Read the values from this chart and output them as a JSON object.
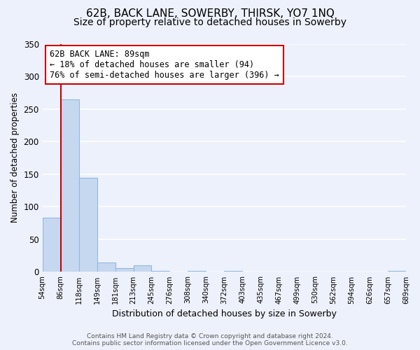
{
  "title": "62B, BACK LANE, SOWERBY, THIRSK, YO7 1NQ",
  "subtitle": "Size of property relative to detached houses in Sowerby",
  "xlabel": "Distribution of detached houses by size in Sowerby",
  "ylabel": "Number of detached properties",
  "bar_values": [
    83,
    265,
    144,
    14,
    6,
    10,
    1,
    0,
    1,
    0,
    1,
    0,
    0,
    0,
    0,
    0,
    0,
    0,
    0,
    1
  ],
  "bar_labels": [
    "54sqm",
    "86sqm",
    "118sqm",
    "149sqm",
    "181sqm",
    "213sqm",
    "245sqm",
    "276sqm",
    "308sqm",
    "340sqm",
    "372sqm",
    "403sqm",
    "435sqm",
    "467sqm",
    "499sqm",
    "530sqm",
    "562sqm",
    "594sqm",
    "626sqm",
    "657sqm",
    "689sqm"
  ],
  "bar_color": "#c6d8f0",
  "bar_edge_color": "#94b8dc",
  "annotation_text": "62B BACK LANE: 89sqm\n← 18% of detached houses are smaller (94)\n76% of semi-detached houses are larger (396) →",
  "annotation_box_color": "white",
  "annotation_box_edge_color": "#cc0000",
  "red_line_color": "#cc0000",
  "ylim": [
    0,
    350
  ],
  "yticks": [
    0,
    50,
    100,
    150,
    200,
    250,
    300,
    350
  ],
  "footer_line1": "Contains HM Land Registry data © Crown copyright and database right 2024.",
  "footer_line2": "Contains public sector information licensed under the Open Government Licence v3.0.",
  "bg_color": "#edf1fb",
  "grid_color": "white",
  "title_fontsize": 11,
  "subtitle_fontsize": 10,
  "ylabel_fontsize": 8.5,
  "xlabel_fontsize": 9,
  "tick_fontsize": 7.2,
  "ytick_fontsize": 8.5,
  "annot_fontsize": 8.5,
  "footer_fontsize": 6.5
}
